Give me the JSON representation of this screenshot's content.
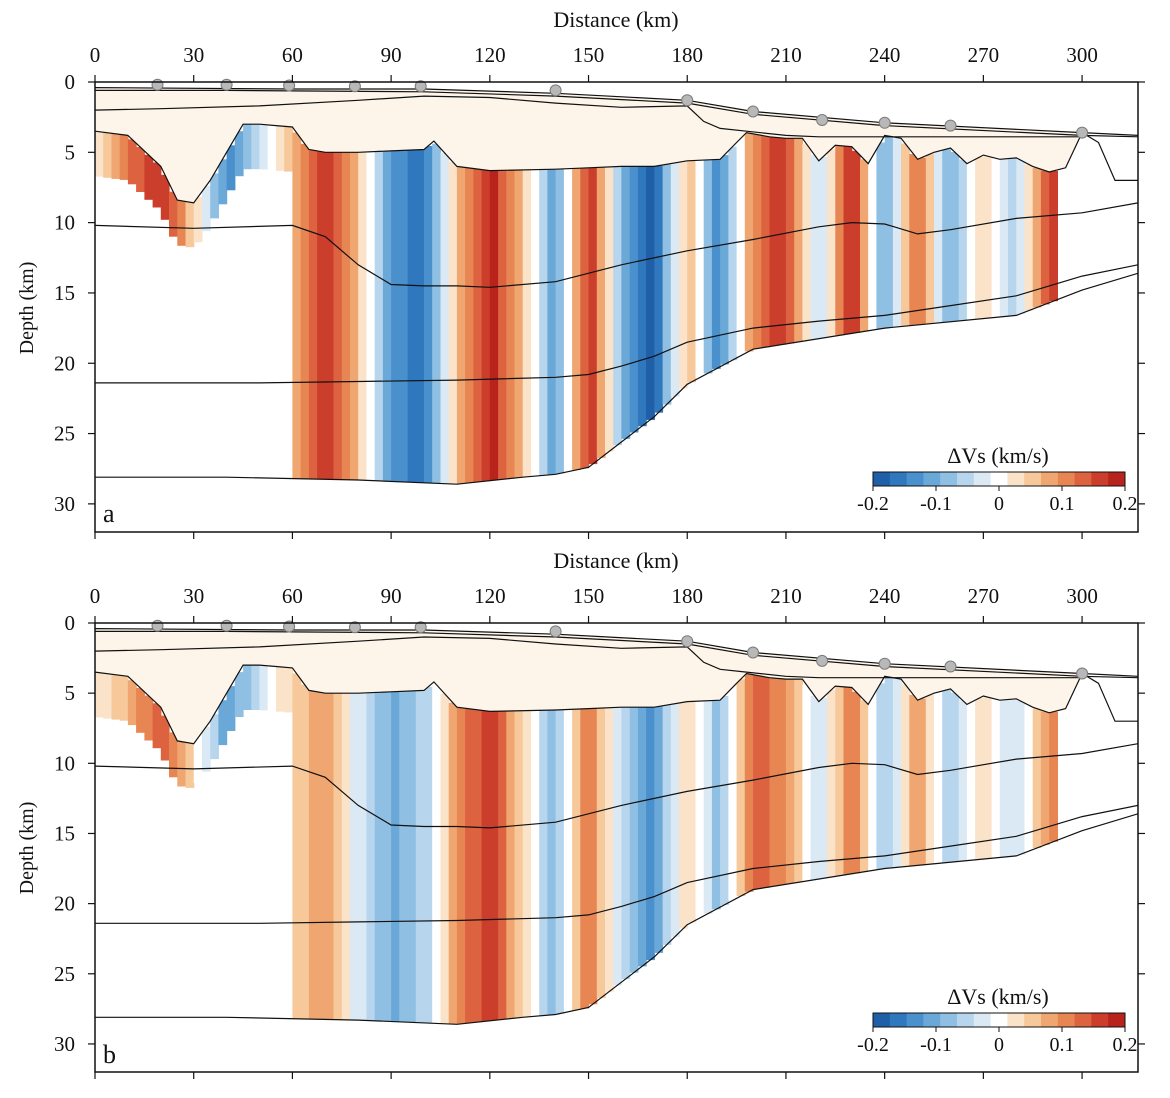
{
  "chart_data": [
    {
      "type": "heatmap",
      "panel_label": "a",
      "xlabel": "Distance (km)",
      "ylabel": "Depth (km)",
      "xlim": [
        0,
        317
      ],
      "ylim": [
        0,
        32
      ],
      "y_inverted": true,
      "x_ticks": [
        0,
        30,
        60,
        90,
        120,
        150,
        180,
        210,
        240,
        270,
        300
      ],
      "y_ticks": [
        0,
        5,
        10,
        15,
        20,
        25,
        30
      ],
      "colorbar": {
        "label": "ΔVs (km/s)",
        "range": [
          -0.2,
          0.2
        ],
        "ticks": [
          "-0.2",
          "-0.1",
          "0",
          "0.1",
          "0.2"
        ],
        "colors": [
          "#1f5fa8",
          "#2f78bd",
          "#4a90cc",
          "#6aa8d8",
          "#8fc0e3",
          "#b7d6ee",
          "#dbe9f5",
          "#ffffff",
          "#fbe3c9",
          "#f6c89a",
          "#f0a670",
          "#e78553",
          "#dc6240",
          "#cc3e2c",
          "#b8231c"
        ]
      },
      "stations_x": [
        19,
        40,
        59,
        79,
        99,
        140,
        180,
        200,
        221,
        240,
        260,
        300
      ],
      "stations_depth": [
        0.2,
        0.2,
        0.25,
        0.3,
        0.3,
        0.6,
        1.3,
        2.1,
        2.7,
        2.9,
        3.1,
        3.6
      ],
      "velocity_profile": {
        "x": [
          0,
          10,
          20,
          30,
          40,
          50,
          60,
          70,
          80,
          90,
          100,
          110,
          120,
          130,
          140,
          150,
          160,
          170,
          180,
          190,
          200,
          210,
          220,
          230,
          240,
          250,
          260,
          270,
          280,
          290
        ],
        "dvs": [
          0.02,
          0.12,
          0.17,
          0.05,
          -0.14,
          -0.05,
          0.06,
          0.16,
          0.06,
          -0.13,
          -0.17,
          0.05,
          0.19,
          0.06,
          -0.12,
          0.18,
          -0.08,
          -0.19,
          0.07,
          -0.15,
          0.11,
          0.17,
          -0.06,
          0.19,
          -0.12,
          0.14,
          -0.11,
          0.05,
          -0.06,
          0.15
        ]
      },
      "boundaries": [
        {
          "x": [
            0,
            60,
            100,
            140,
            180,
            200,
            240,
            300,
            317
          ],
          "depth": [
            0.4,
            0.5,
            0.5,
            0.8,
            1.3,
            2.1,
            2.9,
            3.6,
            3.8
          ]
        },
        {
          "x": [
            0,
            40,
            100,
            140,
            180,
            200,
            240,
            300,
            317
          ],
          "depth": [
            0.6,
            0.6,
            0.7,
            1.0,
            1.5,
            2.3,
            3.1,
            3.8,
            3.9
          ]
        },
        {
          "x": [
            0,
            20,
            50,
            80,
            100,
            120,
            140,
            160,
            180,
            185,
            190,
            198,
            210,
            220,
            235,
            250,
            270,
            290,
            300
          ],
          "depth": [
            2.0,
            1.9,
            1.7,
            1.3,
            1.0,
            1.1,
            1.5,
            1.8,
            1.7,
            2.8,
            3.3,
            3.5,
            3.8,
            3.9,
            3.9,
            3.9,
            3.9,
            3.9,
            3.9
          ]
        },
        {
          "x": [
            0,
            10,
            20,
            25,
            30,
            35,
            40,
            45,
            50,
            55,
            60,
            65,
            70,
            80,
            90,
            100,
            103,
            110,
            120,
            140,
            150,
            160,
            170,
            180,
            190,
            195,
            198,
            205,
            210,
            215,
            220,
            225,
            230,
            235,
            240,
            245,
            250,
            255,
            260,
            265,
            270,
            275,
            280,
            285,
            290,
            295,
            300,
            305,
            310,
            317
          ],
          "depth": [
            3.5,
            3.8,
            6.0,
            8.4,
            8.6,
            7.0,
            5.0,
            3.0,
            3.0,
            3.1,
            3.2,
            4.8,
            5.0,
            5.0,
            4.9,
            4.8,
            4.2,
            6.0,
            6.3,
            6.2,
            6.1,
            6.0,
            6.0,
            5.6,
            5.5,
            4.3,
            3.6,
            3.9,
            4.0,
            4.0,
            5.6,
            4.5,
            4.6,
            5.8,
            3.8,
            4.0,
            5.5,
            5.0,
            4.7,
            5.8,
            5.2,
            5.5,
            5.4,
            6.0,
            6.4,
            6.1,
            3.6,
            4.3,
            7.0,
            7.0
          ]
        },
        {
          "x": [
            0,
            30,
            60,
            70,
            80,
            90,
            100,
            110,
            120,
            140,
            160,
            180,
            200,
            220,
            230,
            240,
            250,
            260,
            280,
            300,
            317
          ],
          "depth": [
            10.2,
            10.4,
            10.2,
            11.0,
            13.0,
            14.4,
            14.5,
            14.5,
            14.6,
            14.2,
            13.0,
            12.0,
            11.2,
            10.3,
            10.0,
            10.1,
            10.8,
            10.5,
            9.7,
            9.3,
            8.6
          ]
        },
        {
          "x": [
            0,
            50,
            80,
            110,
            140,
            150,
            160,
            170,
            180,
            200,
            220,
            240,
            260,
            280,
            300,
            317
          ],
          "depth": [
            21.4,
            21.4,
            21.3,
            21.2,
            21.0,
            20.8,
            20.2,
            19.5,
            18.5,
            17.5,
            17.0,
            16.6,
            15.9,
            15.2,
            13.8,
            13.0
          ]
        },
        {
          "x": [
            0,
            40,
            80,
            110,
            130,
            140,
            150,
            160,
            170,
            180,
            200,
            240,
            280,
            300,
            317
          ],
          "depth": [
            28.1,
            28.1,
            28.3,
            28.6,
            28.1,
            27.9,
            27.4,
            25.6,
            23.8,
            21.5,
            19.0,
            17.5,
            16.6,
            14.8,
            13.6
          ]
        }
      ]
    },
    {
      "type": "heatmap",
      "panel_label": "b",
      "xlabel": "Distance (km)",
      "ylabel": "Depth (km)",
      "xlim": [
        0,
        317
      ],
      "ylim": [
        0,
        32
      ],
      "y_inverted": true,
      "x_ticks": [
        0,
        30,
        60,
        90,
        120,
        150,
        180,
        210,
        240,
        270,
        300
      ],
      "y_ticks": [
        0,
        5,
        10,
        15,
        20,
        25,
        30
      ],
      "colorbar": {
        "label": "ΔVs (km/s)",
        "range": [
          -0.2,
          0.2
        ],
        "ticks": [
          "-0.2",
          "-0.1",
          "0",
          "0.1",
          "0.2"
        ],
        "colors": [
          "#1f5fa8",
          "#2f78bd",
          "#4a90cc",
          "#6aa8d8",
          "#8fc0e3",
          "#b7d6ee",
          "#dbe9f5",
          "#ffffff",
          "#fbe3c9",
          "#f6c89a",
          "#f0a670",
          "#e78553",
          "#dc6240",
          "#cc3e2c",
          "#b8231c"
        ]
      },
      "stations_x": [
        19,
        40,
        59,
        79,
        99,
        140,
        180,
        200,
        221,
        240,
        260,
        300
      ],
      "stations_depth": [
        0.2,
        0.2,
        0.25,
        0.3,
        0.3,
        0.6,
        1.3,
        2.1,
        2.7,
        2.9,
        3.1,
        3.6
      ],
      "velocity_profile": {
        "x": [
          0,
          10,
          20,
          30,
          40,
          50,
          60,
          70,
          80,
          90,
          100,
          110,
          120,
          130,
          140,
          150,
          160,
          170,
          180,
          190,
          200,
          210,
          220,
          230,
          240,
          250,
          260,
          270,
          280,
          290
        ],
        "dvs": [
          0.01,
          0.07,
          0.14,
          0.03,
          -0.12,
          -0.04,
          0.05,
          0.09,
          -0.03,
          -0.1,
          -0.06,
          0.09,
          0.18,
          0.04,
          -0.09,
          0.12,
          -0.05,
          -0.13,
          0.05,
          -0.09,
          0.15,
          0.1,
          -0.05,
          0.13,
          -0.08,
          0.09,
          -0.07,
          0.03,
          -0.04,
          0.1
        ]
      },
      "boundaries": [
        {
          "x": [
            0,
            60,
            100,
            140,
            180,
            200,
            240,
            300,
            317
          ],
          "depth": [
            0.4,
            0.5,
            0.5,
            0.8,
            1.3,
            2.1,
            2.9,
            3.6,
            3.8
          ]
        },
        {
          "x": [
            0,
            40,
            100,
            140,
            180,
            200,
            240,
            300,
            317
          ],
          "depth": [
            0.6,
            0.6,
            0.7,
            1.0,
            1.5,
            2.3,
            3.1,
            3.8,
            3.9
          ]
        },
        {
          "x": [
            0,
            20,
            50,
            80,
            100,
            120,
            140,
            160,
            180,
            185,
            190,
            198,
            210,
            220,
            235,
            250,
            270,
            290,
            300
          ],
          "depth": [
            2.0,
            1.9,
            1.7,
            1.3,
            1.0,
            1.1,
            1.5,
            1.8,
            1.7,
            2.8,
            3.3,
            3.5,
            3.8,
            3.9,
            3.9,
            3.9,
            3.9,
            3.9,
            3.9
          ]
        },
        {
          "x": [
            0,
            10,
            20,
            25,
            30,
            35,
            40,
            45,
            50,
            55,
            60,
            65,
            70,
            80,
            90,
            100,
            103,
            110,
            120,
            140,
            150,
            160,
            170,
            180,
            190,
            195,
            198,
            205,
            210,
            215,
            220,
            225,
            230,
            235,
            240,
            245,
            250,
            255,
            260,
            265,
            270,
            275,
            280,
            285,
            290,
            295,
            300,
            305,
            310,
            317
          ],
          "depth": [
            3.5,
            3.8,
            6.0,
            8.4,
            8.6,
            7.0,
            5.0,
            3.0,
            3.0,
            3.1,
            3.2,
            4.8,
            5.0,
            5.0,
            4.9,
            4.8,
            4.2,
            6.0,
            6.3,
            6.2,
            6.1,
            6.0,
            6.0,
            5.6,
            5.5,
            4.3,
            3.6,
            3.9,
            4.0,
            4.0,
            5.6,
            4.5,
            4.6,
            5.8,
            3.8,
            4.0,
            5.5,
            5.0,
            4.7,
            5.8,
            5.2,
            5.5,
            5.4,
            6.0,
            6.4,
            6.1,
            3.6,
            4.3,
            7.0,
            7.0
          ]
        },
        {
          "x": [
            0,
            30,
            60,
            70,
            80,
            90,
            100,
            110,
            120,
            140,
            160,
            180,
            200,
            220,
            230,
            240,
            250,
            260,
            280,
            300,
            317
          ],
          "depth": [
            10.2,
            10.4,
            10.2,
            11.0,
            13.0,
            14.4,
            14.5,
            14.5,
            14.6,
            14.2,
            13.0,
            12.0,
            11.2,
            10.3,
            10.0,
            10.1,
            10.8,
            10.5,
            9.7,
            9.3,
            8.6
          ]
        },
        {
          "x": [
            0,
            50,
            80,
            110,
            140,
            150,
            160,
            170,
            180,
            200,
            220,
            240,
            260,
            280,
            300,
            317
          ],
          "depth": [
            21.4,
            21.4,
            21.3,
            21.2,
            21.0,
            20.8,
            20.2,
            19.5,
            18.5,
            17.5,
            17.0,
            16.6,
            15.9,
            15.2,
            13.8,
            13.0
          ]
        },
        {
          "x": [
            0,
            40,
            80,
            110,
            130,
            140,
            150,
            160,
            170,
            180,
            200,
            240,
            280,
            300,
            317
          ],
          "depth": [
            28.1,
            28.1,
            28.3,
            28.6,
            28.1,
            27.9,
            27.4,
            25.6,
            23.8,
            21.5,
            19.0,
            17.5,
            16.6,
            14.8,
            13.6
          ]
        }
      ]
    }
  ],
  "colors": {
    "sediment_fill": "#fdf5ea",
    "station_fill": "#b8b8b8",
    "station_stroke": "#7a7a7a",
    "line": "#111111"
  }
}
